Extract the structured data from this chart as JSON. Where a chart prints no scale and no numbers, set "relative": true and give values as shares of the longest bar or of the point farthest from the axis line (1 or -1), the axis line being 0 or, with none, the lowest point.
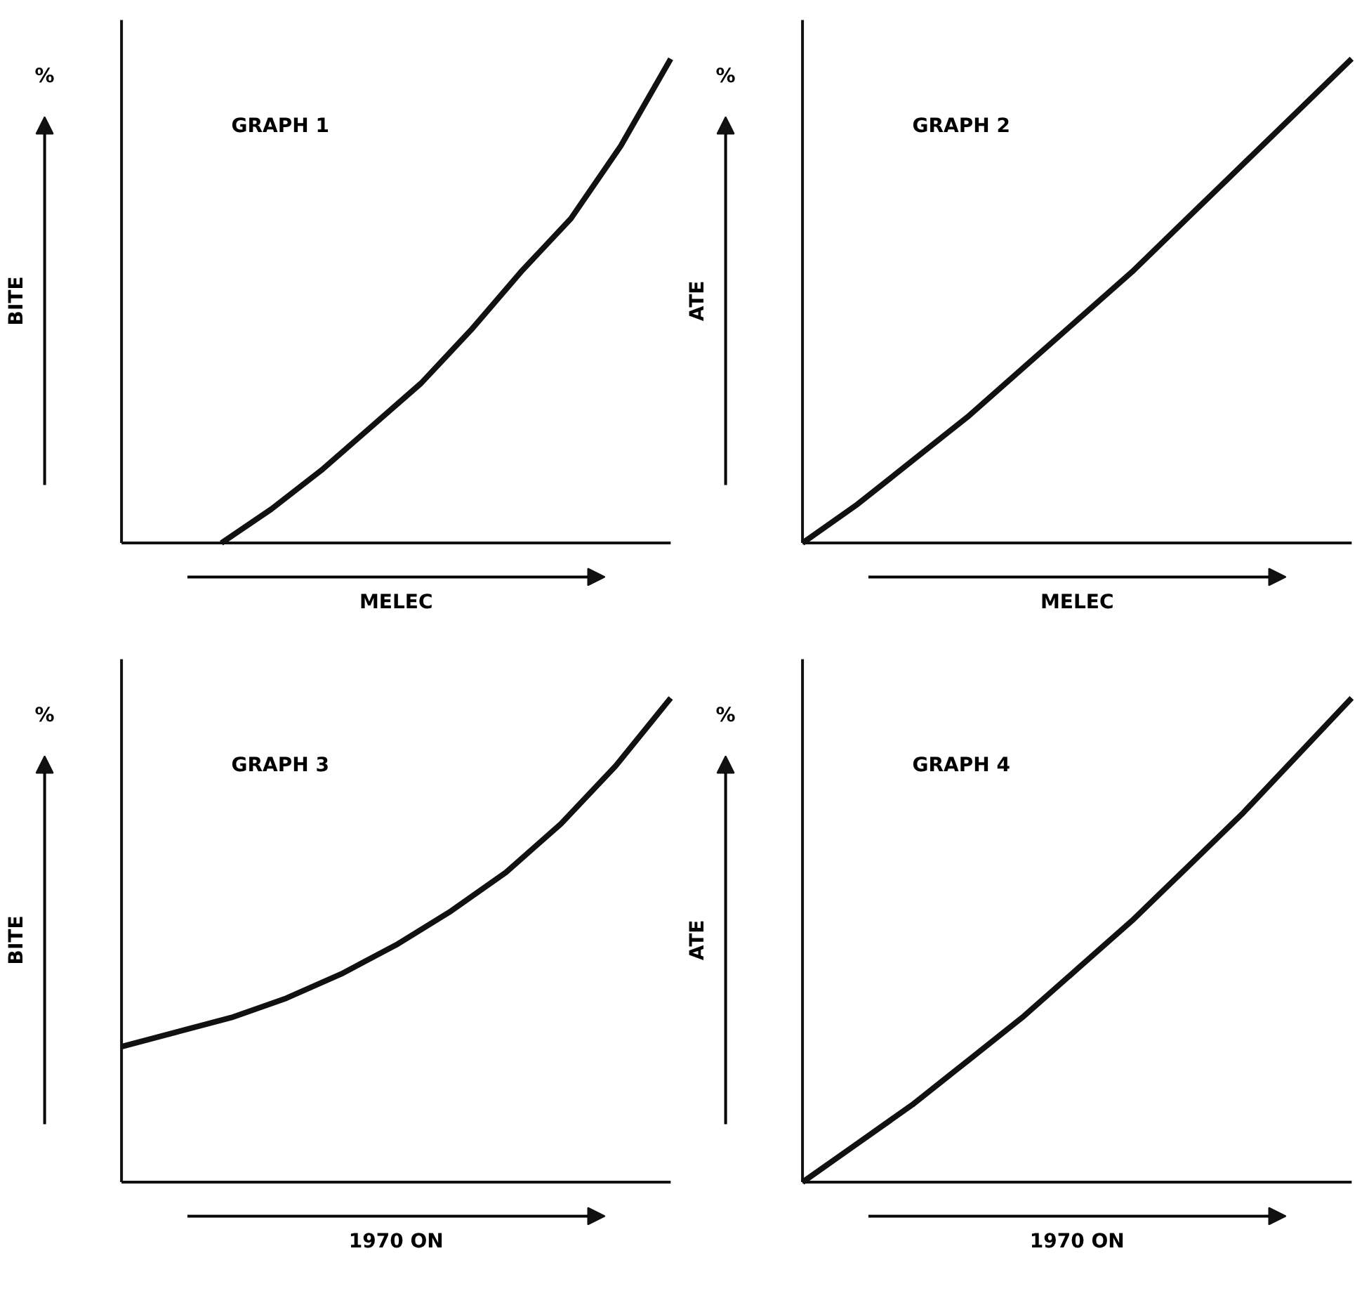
{
  "chart_data": [
    {
      "type": "line",
      "title": "GRAPH 1",
      "xlabel": "MELEC",
      "ylabel": "BITE",
      "annotations": [
        "%"
      ],
      "relative": true,
      "categories": [
        null,
        null,
        null,
        null,
        null,
        null,
        null,
        null,
        null,
        null,
        null,
        null
      ],
      "series": [
        {
          "color": "#111111",
          "values": [
            null,
            null,
            0,
            0.07,
            0.15,
            0.24,
            0.33,
            0.44,
            0.56,
            0.67,
            0.82,
            1.0
          ]
        }
      ]
    },
    {
      "type": "line",
      "title": "GRAPH 2",
      "xlabel": "MELEC",
      "ylabel": "ATE",
      "annotations": [
        "%"
      ],
      "relative": true,
      "categories": [
        null,
        null,
        null,
        null,
        null,
        null,
        null,
        null,
        null,
        null,
        null
      ],
      "series": [
        {
          "color": "#111111",
          "values": [
            0,
            0.08,
            0.17,
            0.26,
            0.36,
            0.46,
            0.56,
            0.67,
            0.78,
            0.89,
            1.0
          ]
        }
      ]
    },
    {
      "type": "line",
      "title": "GRAPH 3",
      "xlabel": "1970 ON",
      "ylabel": "BITE",
      "annotations": [
        "%"
      ],
      "relative": true,
      "categories": [
        null,
        null,
        null,
        null,
        null,
        null,
        null,
        null,
        null,
        null,
        null
      ],
      "series": [
        {
          "color": "#111111",
          "values": [
            0.28,
            0.31,
            0.34,
            0.38,
            0.43,
            0.49,
            0.56,
            0.64,
            0.74,
            0.86,
            1.0
          ]
        }
      ]
    },
    {
      "type": "line",
      "title": "GRAPH 4",
      "xlabel": "1970 ON",
      "ylabel": "ATE",
      "annotations": [
        "%"
      ],
      "relative": true,
      "categories": [
        null,
        null,
        null,
        null,
        null,
        null,
        null,
        null,
        null,
        null,
        null
      ],
      "series": [
        {
          "color": "#111111",
          "values": [
            0,
            0.08,
            0.16,
            0.25,
            0.34,
            0.44,
            0.54,
            0.65,
            0.76,
            0.88,
            1.0
          ]
        }
      ]
    }
  ]
}
